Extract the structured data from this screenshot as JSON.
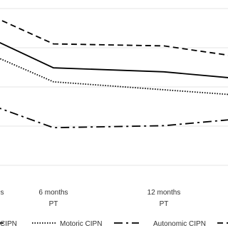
{
  "chart_data": {
    "type": "line",
    "categories": [
      "s",
      "6 months PT",
      "12 months PT",
      null
    ],
    "series": [
      {
        "color": "#000000",
        "dash": "8 5",
        "values": [
          103,
          78,
          77,
          69
        ]
      },
      {
        "name": "CIPN",
        "color": "#000000",
        "dash": "none",
        "values": [
          92,
          66,
          64,
          59
        ]
      },
      {
        "name": "Motoric CIPN",
        "color": "#000000",
        "dash": "1.5 2",
        "values": [
          83,
          59,
          55,
          51
        ]
      },
      {
        "name": "Autonomic CIPN",
        "color": "#000000",
        "dash": "12 5 3 5",
        "values": [
          56,
          36,
          37,
          42
        ]
      }
    ],
    "ylim": [
      0,
      100
    ]
  }
}
